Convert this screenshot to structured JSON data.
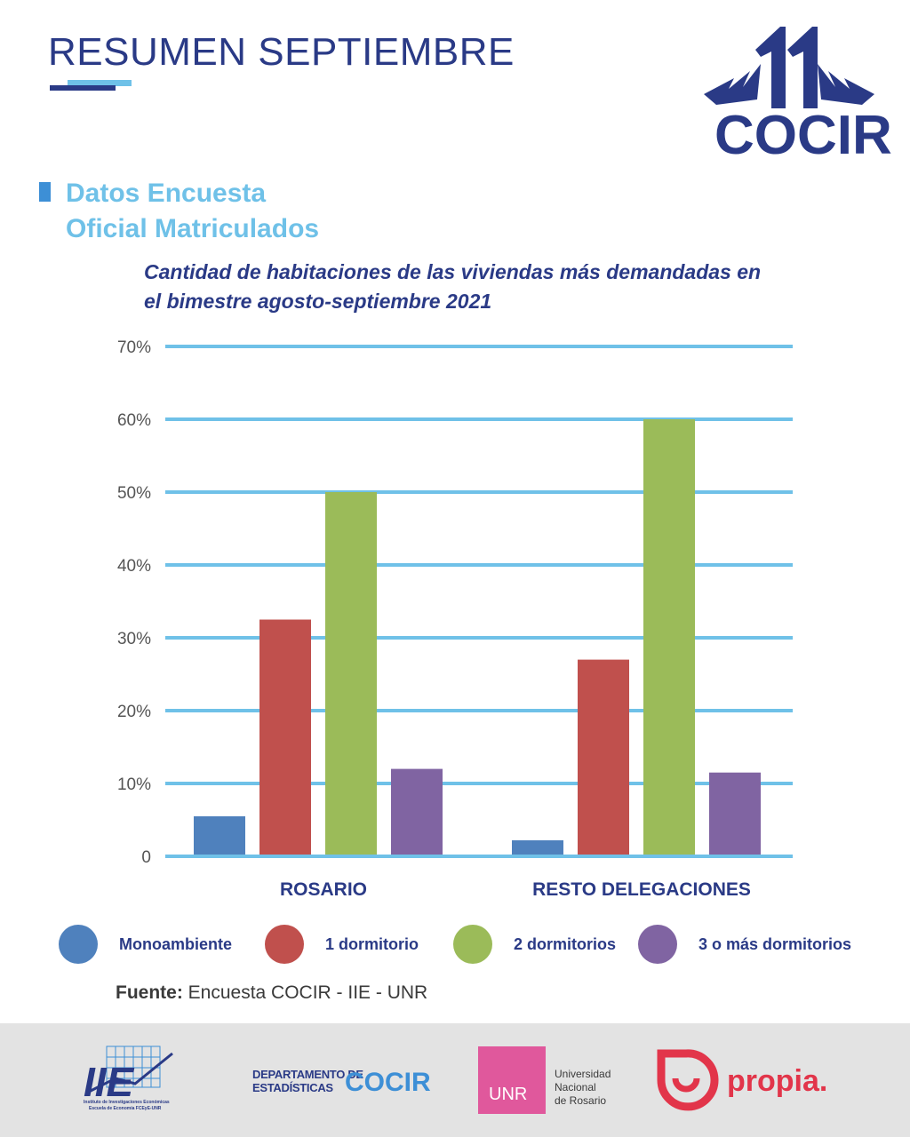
{
  "header": {
    "title": "RESUMEN SEPTIEMBRE",
    "logo": {
      "number": "11",
      "name": "COCIR"
    }
  },
  "section": {
    "title_line1": "Datos Encuesta",
    "title_line2": "Oficial Matriculados"
  },
  "chart_data": {
    "type": "bar",
    "title": "Cantidad de habitaciones de las viviendas más demandadas en el bimestre agosto-septiembre 2021",
    "title_line1": "Cantidad de habitaciones de las viviendas más demandadas en",
    "title_line2": "el bimestre agosto-septiembre 2021",
    "categories": [
      "ROSARIO",
      "RESTO DELEGACIONES"
    ],
    "series": [
      {
        "name": "Monoambiente",
        "color": "#4f81bd",
        "values": [
          5.5,
          2.2
        ]
      },
      {
        "name": "1 dormitorio",
        "color": "#c0504d",
        "values": [
          32.5,
          27.0
        ]
      },
      {
        "name": "2 dormitorios",
        "color": "#9bbb59",
        "values": [
          50.0,
          60.0
        ]
      },
      {
        "name": "3 o más dormitorios",
        "color": "#8064a2",
        "values": [
          12.0,
          11.5
        ]
      }
    ],
    "yticks": [
      "0",
      "10%",
      "20%",
      "30%",
      "40%",
      "50%",
      "60%",
      "70%"
    ],
    "ylim": [
      0,
      70
    ],
    "grid": true,
    "grid_color": "#6fc1e8",
    "legend_position": "bottom"
  },
  "source": {
    "label": "Fuente:",
    "text": " Encuesta COCIR - IIE - UNR"
  },
  "footer": {
    "iie": {
      "mark": "IIE",
      "line1": "Instituto de Investigaciones Económicas",
      "line2": "Escuela de Economía FCEyE-UNR"
    },
    "dep": {
      "line1": "DEPARTAMENTO DE",
      "line2": "ESTADÍSTICAS",
      "brand": "COCIR"
    },
    "unr": {
      "mark": "UNR",
      "line1": "Universidad",
      "line2": "Nacional",
      "line3": "de Rosario"
    },
    "propia": {
      "text": "propia."
    }
  }
}
